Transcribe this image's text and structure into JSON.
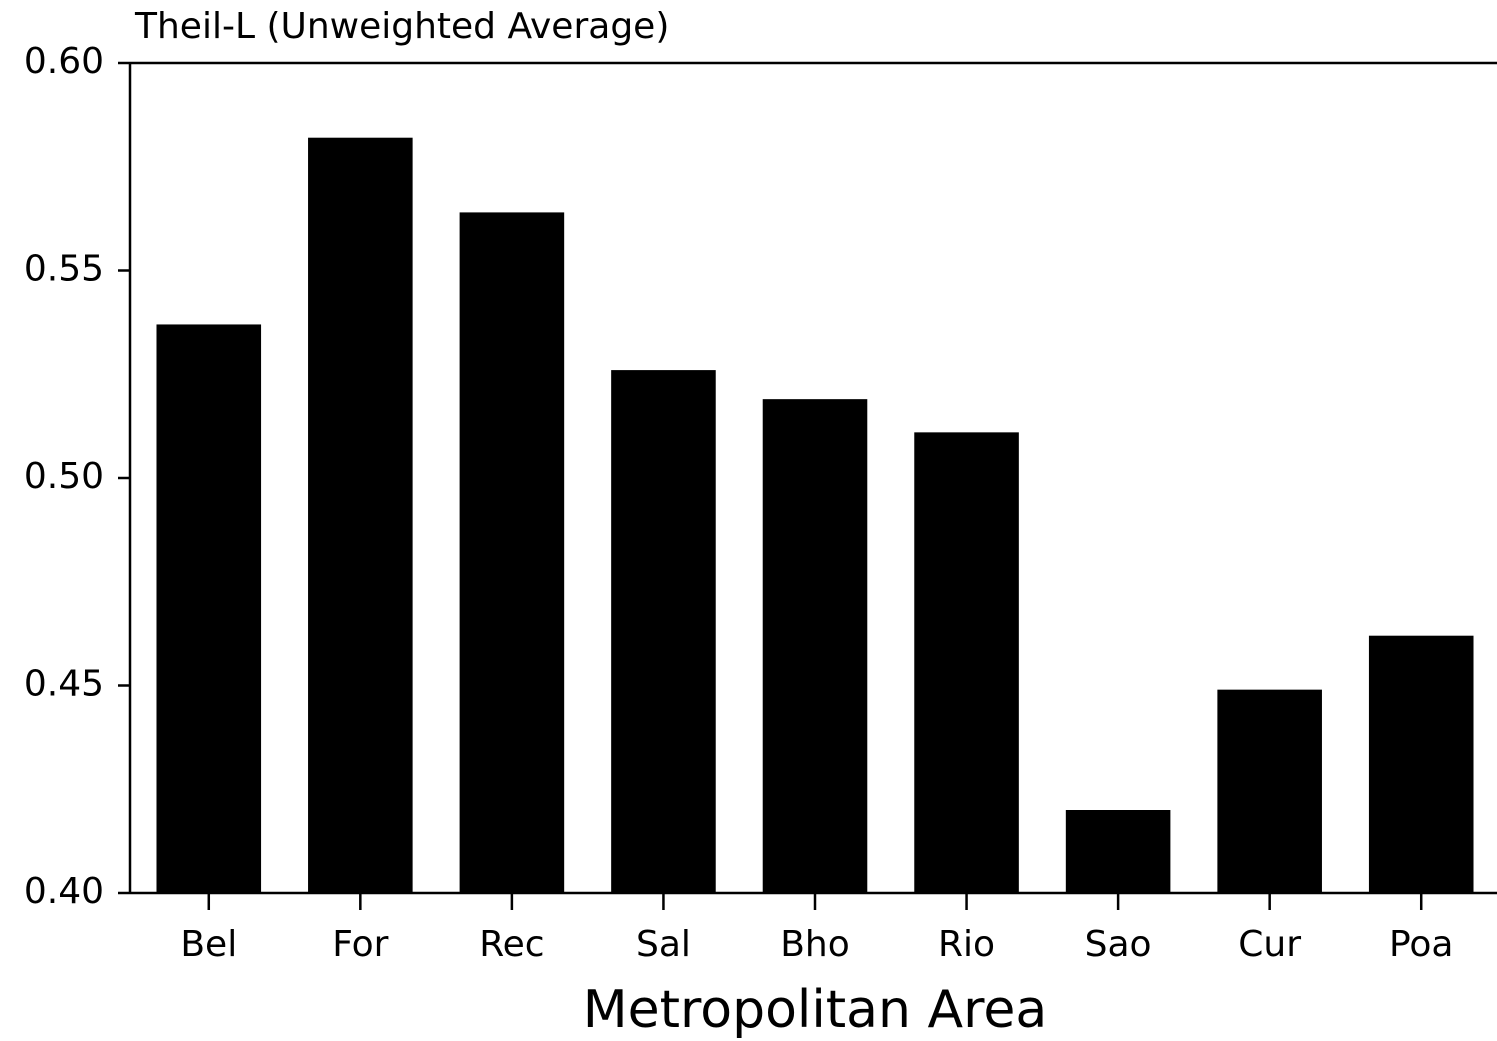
{
  "chart_data": {
    "type": "bar",
    "title": "Theil-L (Unweighted Average)",
    "x_label": "Metropolitan Area",
    "categories": [
      "Bel",
      "For",
      "Rec",
      "Sal",
      "Bho",
      "Rio",
      "Sao",
      "Cur",
      "Poa"
    ],
    "values": [
      0.537,
      0.582,
      0.564,
      0.526,
      0.519,
      0.511,
      0.42,
      0.449,
      0.462
    ],
    "color": "#000000",
    "ylim": [
      0.4,
      0.6
    ],
    "yticks": [
      {
        "value": 0.4,
        "label": "0.40"
      },
      0.45,
      {
        "value": 0.5,
        "label": "0.50"
      },
      0.55,
      {
        "value": 0.6,
        "label": "0.60"
      }
    ],
    "grid": false
  }
}
